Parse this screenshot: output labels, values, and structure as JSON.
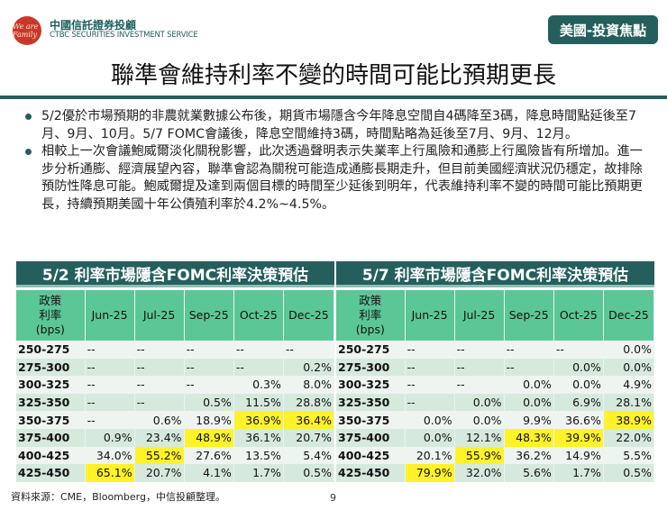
{
  "header": {
    "brand_cn": "中國信託證券投顧",
    "brand_en": "CTBC SECURITIES INVESTMENT SERVICE",
    "logo_text": "We are Family",
    "tag": "美國-投資焦點"
  },
  "title": "聯準會維持利率不變的時間可能比預期更長",
  "bullets": [
    "5/2優於市場預期的非農就業數據公布後，期貨市場隱含今年降息空間自4碼降至3碼，降息時間點延後至7月、9月、10月。5/7 FOMC會議後，降息空間維持3碼，時間點略為延後至7月、9月、12月。",
    "相較上一次會議鮑威爾淡化關稅影響，此次透過聲明表示失業率上行風險和通膨上行風險皆有所增加。進一步分析通膨、經濟展望內容，聯準會認為關稅可能造成通膨長期走升，但目前美國經濟狀況仍穩定，故排除預防性降息可能。鮑威爾提及達到兩個目標的時間至少延後到明年，代表維持利率不變的時間可能比預期更長，持續預期美國十年公債殖利率於4.2%~4.5%。"
  ],
  "highlight_color": "#fff22a",
  "tables": [
    {
      "title": "5/2 利率市場隱含FOMC利率決策預估",
      "rate_header": [
        "政策",
        "利率",
        "(bps)"
      ],
      "columns": [
        "Jun-25",
        "Jul-25",
        "Sep-25",
        "Oct-25",
        "Dec-25"
      ],
      "rows": [
        {
          "rate": "250-275",
          "values": [
            "--",
            "--",
            "--",
            "--",
            "--"
          ],
          "highlight": []
        },
        {
          "rate": "275-300",
          "values": [
            "--",
            "--",
            "--",
            "--",
            "0.2%"
          ],
          "highlight": []
        },
        {
          "rate": "300-325",
          "values": [
            "--",
            "--",
            "--",
            "0.3%",
            "8.0%"
          ],
          "highlight": []
        },
        {
          "rate": "325-350",
          "values": [
            "--",
            "--",
            "0.5%",
            "11.5%",
            "28.8%"
          ],
          "highlight": []
        },
        {
          "rate": "350-375",
          "values": [
            "--",
            "0.6%",
            "18.9%",
            "36.9%",
            "36.4%"
          ],
          "highlight": [
            3,
            4
          ]
        },
        {
          "rate": "375-400",
          "values": [
            "0.9%",
            "23.4%",
            "48.9%",
            "36.1%",
            "20.7%"
          ],
          "highlight": [
            2
          ]
        },
        {
          "rate": "400-425",
          "values": [
            "34.0%",
            "55.2%",
            "27.6%",
            "13.5%",
            "5.4%"
          ],
          "highlight": [
            1
          ]
        },
        {
          "rate": "425-450",
          "values": [
            "65.1%",
            "20.7%",
            "4.1%",
            "1.7%",
            "0.5%"
          ],
          "highlight": [
            0
          ]
        }
      ]
    },
    {
      "title": "5/7 利率市場隱含FOMC利率決策預估",
      "rate_header": [
        "政策",
        "利率",
        "(bps)"
      ],
      "columns": [
        "Jun-25",
        "Jul-25",
        "Sep-25",
        "Oct-25",
        "Dec-25"
      ],
      "rows": [
        {
          "rate": "250-275",
          "values": [
            "--",
            "--",
            "--",
            "--",
            "0.0%"
          ],
          "highlight": []
        },
        {
          "rate": "275-300",
          "values": [
            "--",
            "--",
            "--",
            "0.0%",
            "0.0%"
          ],
          "highlight": []
        },
        {
          "rate": "300-325",
          "values": [
            "--",
            "--",
            "0.0%",
            "0.0%",
            "4.9%"
          ],
          "highlight": []
        },
        {
          "rate": "325-350",
          "values": [
            "--",
            "0.0%",
            "0.0%",
            "6.9%",
            "28.1%"
          ],
          "highlight": []
        },
        {
          "rate": "350-375",
          "values": [
            "0.0%",
            "0.0%",
            "9.9%",
            "36.6%",
            "38.9%"
          ],
          "highlight": [
            4
          ]
        },
        {
          "rate": "375-400",
          "values": [
            "0.0%",
            "12.1%",
            "48.3%",
            "39.9%",
            "22.0%"
          ],
          "highlight": [
            2,
            3
          ]
        },
        {
          "rate": "400-425",
          "values": [
            "20.1%",
            "55.9%",
            "36.2%",
            "14.9%",
            "5.5%"
          ],
          "highlight": [
            1
          ]
        },
        {
          "rate": "425-450",
          "values": [
            "79.9%",
            "32.0%",
            "5.6%",
            "1.7%",
            "0.5%"
          ],
          "highlight": [
            0
          ]
        }
      ]
    }
  ],
  "footer": {
    "source": "資料來源：CME，Bloomberg，中信投顧整理。",
    "page": "9"
  }
}
